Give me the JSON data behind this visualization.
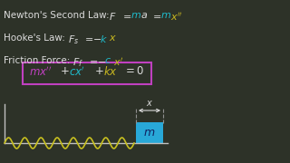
{
  "bg_color": "#2d3228",
  "white_color": "#dcdcdc",
  "yellow_color": "#c8b820",
  "cyan_color": "#20b8c8",
  "magenta_color": "#c040c0",
  "box_edge_color": "#c040c0",
  "wave_color": "#c8c020",
  "block_color": "#28a8d8",
  "axes_color": "#c0c0c0",
  "dashed_color": "#909090",
  "m_label_color": "#102060",
  "newton_label": "Newton's Second Law:",
  "hooke_label": "Hooke's Law:",
  "friction_label": "Friction Force:"
}
